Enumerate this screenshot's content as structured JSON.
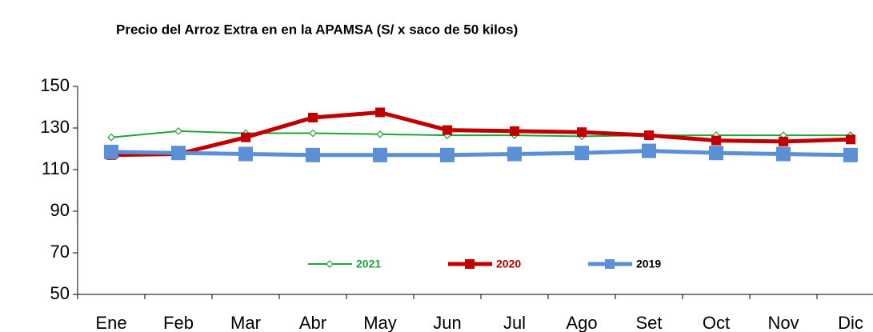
{
  "chart_data": {
    "type": "line",
    "title": "Precio del Arroz Extra en en la APAMSA (S/  x saco de 50 kilos)",
    "categories": [
      "Ene",
      "Feb",
      "Mar",
      "Abr",
      "May",
      "Jun",
      "Jul",
      "Ago",
      "Set",
      "Oct",
      "Nov",
      "Dic"
    ],
    "series": [
      {
        "name": "2021",
        "color": "#22a33a",
        "marker": "diamond",
        "values": [
          125.5,
          128.5,
          127.5,
          127.5,
          127,
          126.5,
          126.5,
          126,
          126.5,
          126.5,
          126.5,
          126.5
        ]
      },
      {
        "name": "2020",
        "color": "#c00000",
        "marker": "square",
        "values": [
          117,
          117.5,
          125.5,
          135,
          137.5,
          129,
          128.5,
          128,
          126.5,
          124,
          123.5,
          124.5
        ]
      },
      {
        "name": "2019",
        "color": "#5b8fd6",
        "marker": "square",
        "values": [
          118.5,
          118,
          117.5,
          117,
          117,
          117,
          117.5,
          118,
          119,
          118,
          117.5,
          117
        ]
      }
    ],
    "ylim": [
      50,
      150
    ],
    "yticks": [
      50,
      70,
      90,
      110,
      130,
      150
    ]
  }
}
